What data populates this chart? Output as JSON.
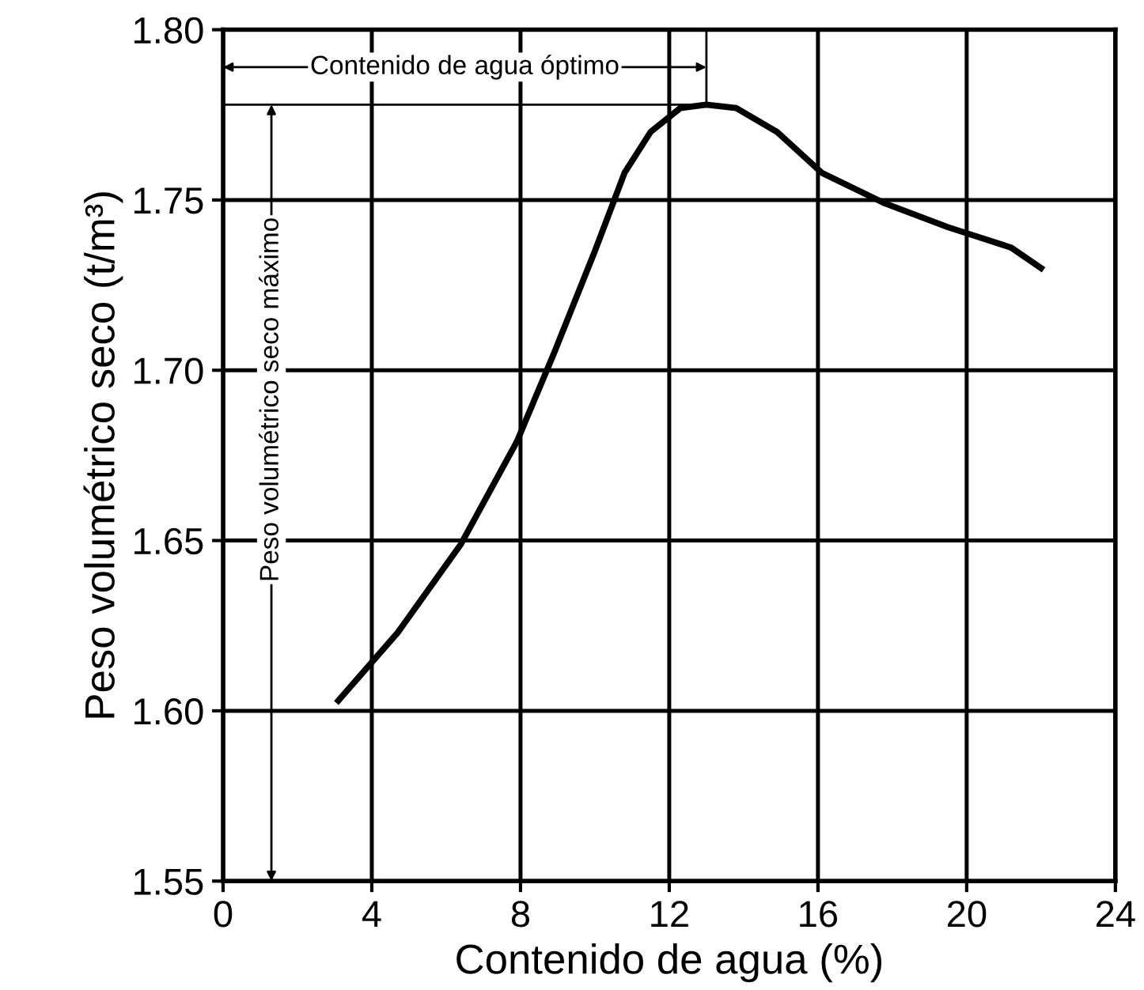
{
  "chart_data": {
    "type": "line",
    "xlabel": "Contenido de agua (%)",
    "ylabel": "Peso volumétrico seco (t/m³)",
    "x": [
      3.1,
      4.7,
      6.4,
      7.9,
      8.9,
      10.0,
      10.8,
      11.5,
      12.3,
      13.0,
      13.8,
      14.9,
      16.1,
      17.8,
      19.5,
      21.2,
      22.0
    ],
    "series": [
      {
        "color": "#000000",
        "values": [
          1.603,
          1.623,
          1.649,
          1.679,
          1.705,
          1.735,
          1.758,
          1.77,
          1.777,
          1.778,
          1.777,
          1.77,
          1.758,
          1.749,
          1.742,
          1.736,
          1.73
        ]
      }
    ],
    "xlim": [
      0,
      24
    ],
    "xticks": [
      0,
      4,
      8,
      12,
      16,
      20,
      24
    ],
    "ylim": [
      1.55,
      1.8
    ],
    "yticks": [
      {
        "value": 1.55,
        "label": "1.55"
      },
      {
        "value": 1.6,
        "label": "1.60"
      },
      {
        "value": 1.65,
        "label": "1.65"
      },
      {
        "value": 1.7,
        "label": "1.70"
      },
      {
        "value": 1.75,
        "label": "1.75"
      },
      {
        "value": 1.8,
        "label": "1.80"
      }
    ],
    "grid": true,
    "marker": "none",
    "line_style": "solid",
    "ref_lines": [
      {
        "axis": "y",
        "value": 1.778,
        "color": "#000000",
        "line_style": "solid"
      },
      {
        "axis": "x",
        "value": 13.0,
        "color": "#000000",
        "line_style": "solid"
      }
    ],
    "annotations": [
      {
        "text": "Contenido de agua óptimo",
        "x": 13.0,
        "y": 1.789
      },
      {
        "text": "Peso volumétrico seco máximo",
        "x": 1.3,
        "y": 1.778
      }
    ]
  }
}
